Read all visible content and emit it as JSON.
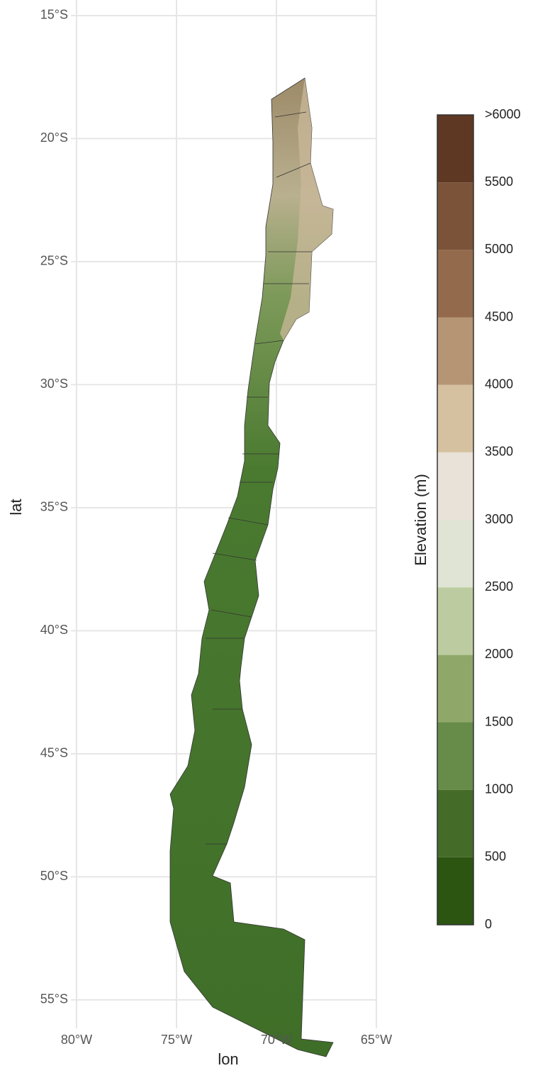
{
  "map": {
    "xlabel": "lon",
    "ylabel": "lat",
    "xlim": [
      -80,
      -65
    ],
    "ylim": [
      -55.8,
      -14.5
    ],
    "xticks": [
      {
        "value": -80,
        "label": "80°W"
      },
      {
        "value": -75,
        "label": "75°W"
      },
      {
        "value": -70,
        "label": "70°W"
      },
      {
        "value": -65,
        "label": "65°W"
      }
    ],
    "yticks": [
      {
        "value": -15,
        "label": "15°S"
      },
      {
        "value": -20,
        "label": "20°S"
      },
      {
        "value": -25,
        "label": "25°S"
      },
      {
        "value": -30,
        "label": "30°S"
      },
      {
        "value": -35,
        "label": "35°S"
      },
      {
        "value": -40,
        "label": "40°S"
      },
      {
        "value": -45,
        "label": "45°S"
      },
      {
        "value": -50,
        "label": "50°S"
      },
      {
        "value": -55,
        "label": "55°S"
      }
    ],
    "grid": true,
    "legend": {
      "title": "Elevation (m)",
      "breaks": [
        0,
        500,
        1000,
        1500,
        2000,
        2500,
        3000,
        3500,
        4000,
        4500,
        5000,
        5500,
        {
          "value": 6000,
          "label": ">6000"
        }
      ],
      "colors": [
        "#2b5511",
        "#446b28",
        "#678c4a",
        "#8fa869",
        "#bccca0",
        "#dfe4d5",
        "#e9e2d8",
        "#d5c0a0",
        "#b59574",
        "#936b4c",
        "#7a5339",
        "#5f3824"
      ]
    }
  }
}
